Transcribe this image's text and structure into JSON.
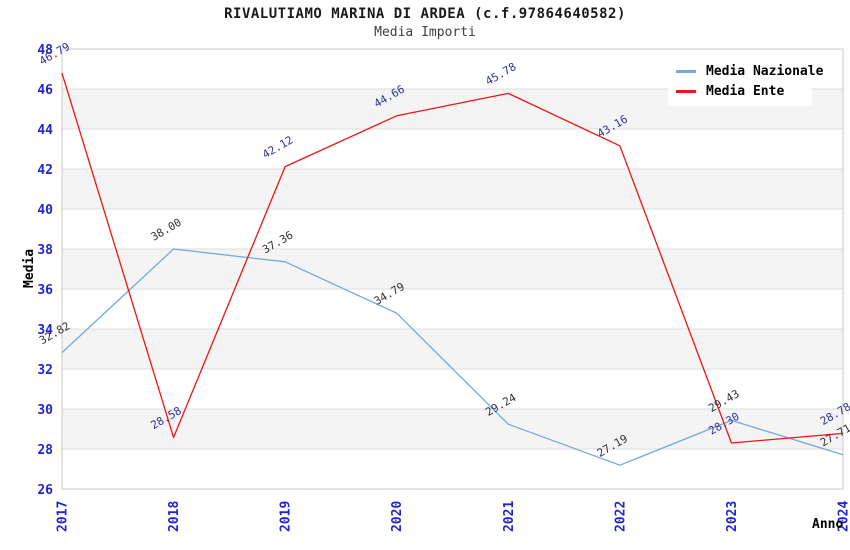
{
  "chart_data": {
    "type": "line",
    "title": "RIVALUTIAMO MARINA DI ARDEA (c.f.97864640582)",
    "subtitle": "Media Importi",
    "xlabel": "Anno",
    "ylabel": "Media",
    "x": [
      2017,
      2018,
      2019,
      2020,
      2021,
      2022,
      2023,
      2024
    ],
    "series": [
      {
        "name": "Media Nazionale",
        "color": "#74a9dd",
        "label_color": "#333333",
        "values": [
          32.82,
          38.0,
          37.36,
          34.79,
          29.24,
          27.19,
          29.43,
          27.71
        ]
      },
      {
        "name": "Media Ente",
        "color": "#ed1515",
        "label_color": "#333399",
        "values": [
          46.79,
          28.58,
          42.12,
          44.66,
          45.78,
          43.16,
          28.3,
          28.78
        ]
      }
    ],
    "ylim": [
      26,
      48
    ],
    "ytick_step": 2,
    "grid": "horizontal",
    "legend_position": "top-right",
    "colors": {
      "tick_label": "#2323cf",
      "grid_line": "#dedede",
      "plot_border": "#c8c8c8",
      "band_fill": "#f4f4f4",
      "axis_title": "#000000"
    }
  }
}
